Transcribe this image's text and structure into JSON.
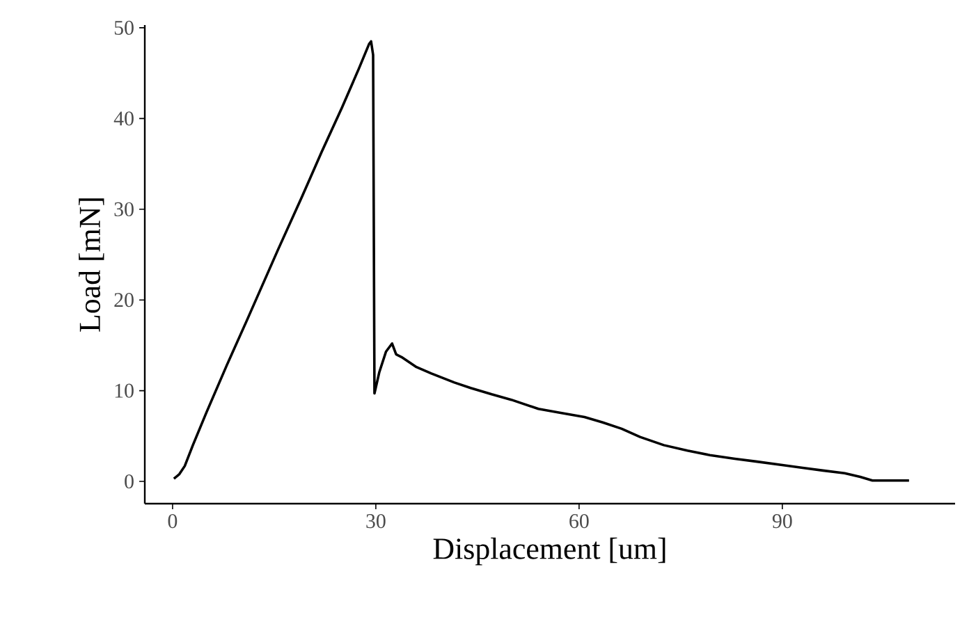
{
  "chart_data": {
    "type": "line",
    "xlabel": "Displacement [um]",
    "ylabel": "Load [mN]",
    "series": [
      {
        "color": "#000000",
        "x": [
          0.2,
          1.0,
          1.8,
          3.0,
          5.0,
          8.0,
          11.0,
          15.6,
          19.0,
          22.0,
          25.0,
          27.5,
          29.0,
          29.3,
          29.6,
          29.8,
          30.5,
          31.5,
          32.4,
          33.0,
          33.8,
          36.0,
          38.2,
          41.6,
          44.0,
          47.1,
          50.0,
          54.0,
          57.0,
          60.8,
          63.5,
          66.3,
          69.0,
          72.5,
          76.0,
          79.3,
          83.0,
          86.1,
          90.0,
          93.0,
          96.0,
          99.2,
          101.5,
          103.3,
          106.0,
          108.7
        ],
        "values": [
          0.3,
          0.8,
          1.7,
          4.0,
          7.6,
          12.8,
          17.8,
          25.6,
          31.2,
          36.3,
          41.2,
          45.5,
          48.2,
          48.5,
          47.0,
          9.7,
          12.0,
          14.3,
          15.2,
          14.0,
          13.7,
          12.6,
          11.9,
          10.9,
          10.3,
          9.6,
          9.0,
          8.0,
          7.6,
          7.1,
          6.5,
          5.8,
          4.9,
          4.0,
          3.4,
          2.9,
          2.5,
          2.2,
          1.8,
          1.5,
          1.2,
          0.9,
          0.5,
          0.1,
          0.1,
          0.1
        ]
      }
    ],
    "xlim": [
      -4.1,
      115.5
    ],
    "ylim": [
      -2.45,
      50.3
    ],
    "xticks": [
      0,
      30,
      60,
      90
    ],
    "yticks": [
      0,
      10,
      20,
      30,
      40,
      50
    ],
    "grid": false,
    "marker": "none",
    "line_style": "solid"
  }
}
